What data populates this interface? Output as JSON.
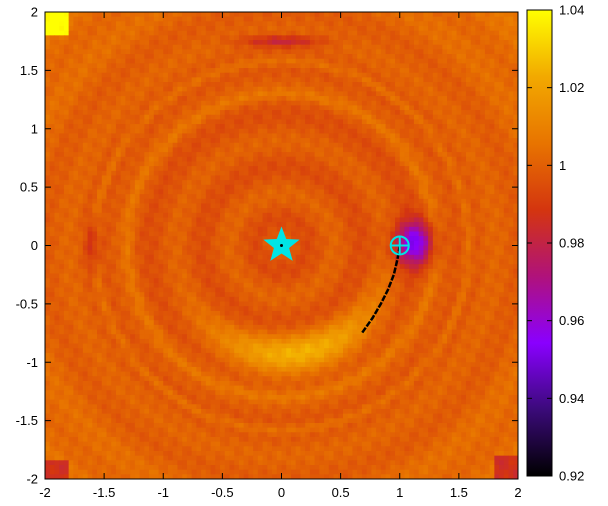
{
  "chart_data": {
    "type": "heatmap",
    "title": "",
    "xlabel": "",
    "ylabel": "",
    "xlim": [
      -2,
      2
    ],
    "ylim": [
      -2,
      2
    ],
    "x_ticks": [
      -2,
      -1.5,
      -1,
      -0.5,
      0,
      0.5,
      1,
      1.5,
      2
    ],
    "y_ticks": [
      -2,
      -1.5,
      -1,
      -0.5,
      0,
      0.5,
      1,
      1.5,
      2
    ],
    "x_tick_labels": [
      "-2",
      "-1.5",
      "-1",
      "-0.5",
      "0",
      "0.5",
      "1",
      "1.5",
      "2"
    ],
    "y_tick_labels": [
      "-2",
      "-1.5",
      "-1",
      "-0.5",
      "0",
      "0.5",
      "1",
      "1.5",
      "2"
    ],
    "colorbar": {
      "range": [
        0.92,
        1.04
      ],
      "ticks": [
        0.92,
        0.94,
        0.96,
        0.98,
        1,
        1.02,
        1.04
      ],
      "tick_labels": [
        "0.92",
        "0.94",
        "0.96",
        "0.98",
        "1",
        "1.02",
        "1.04"
      ],
      "colormap": [
        "#000000",
        "#3b0a7a",
        "#8a00ff",
        "#b0127a",
        "#d4350f",
        "#e87400",
        "#f2a900",
        "#ffff00"
      ]
    },
    "grid": false,
    "features": {
      "star": {
        "x": 0,
        "y": 0,
        "color": "#00e5e5"
      },
      "planet": {
        "x": 1,
        "y": 0,
        "color": "#00e5e5"
      },
      "trail": [
        [
          1.0,
          0.0
        ],
        [
          0.98,
          -0.12
        ],
        [
          0.95,
          -0.25
        ],
        [
          0.9,
          -0.38
        ],
        [
          0.84,
          -0.5
        ],
        [
          0.77,
          -0.62
        ],
        [
          0.68,
          -0.75
        ]
      ],
      "central_disk_radius": 1.55,
      "ring_radius": 1.58,
      "crescent": {
        "angle_deg": -80,
        "radius": 0.95
      }
    }
  }
}
